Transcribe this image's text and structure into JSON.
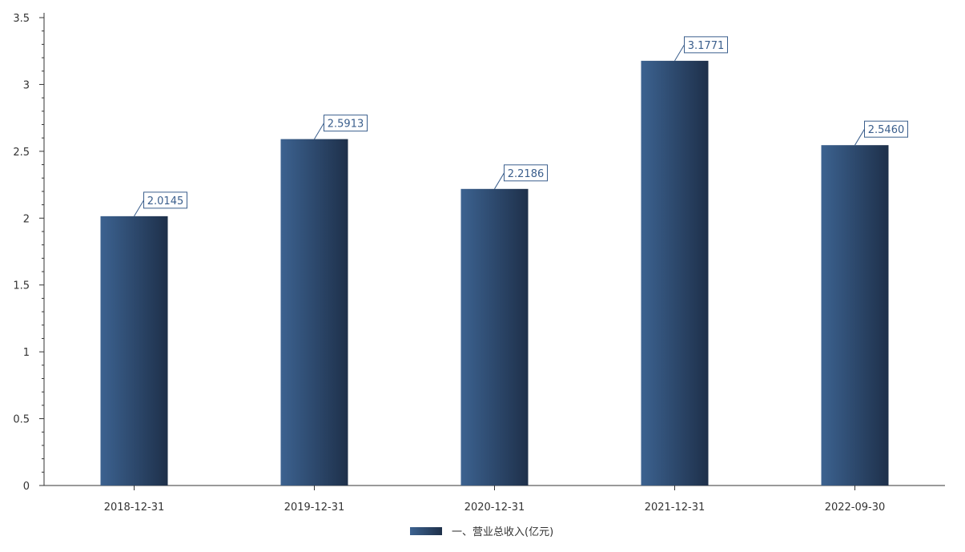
{
  "chart_data": {
    "type": "bar",
    "categories": [
      "2018-12-31",
      "2019-12-31",
      "2020-12-31",
      "2021-12-31",
      "2022-09-30"
    ],
    "series": [
      {
        "name": "一、营业总收入(亿元)",
        "values": [
          2.0145,
          2.5913,
          2.2186,
          3.1771,
          2.546
        ],
        "labels": [
          "2.0145",
          "2.5913",
          "2.2186",
          "3.1771",
          "2.5460"
        ]
      }
    ],
    "yticks": [
      "0",
      "0.5",
      "1",
      "1.5",
      "2",
      "2.5",
      "3",
      "3.5"
    ],
    "ylim": [
      0,
      3.5
    ],
    "legend": "bottom-center",
    "grid": false,
    "colors": {
      "bar_light": "#3c6290",
      "bar_dark": "#1e304a",
      "axis": "#333333",
      "label_border": "#3a5e8c",
      "label_text": "#3a5e8c"
    }
  }
}
